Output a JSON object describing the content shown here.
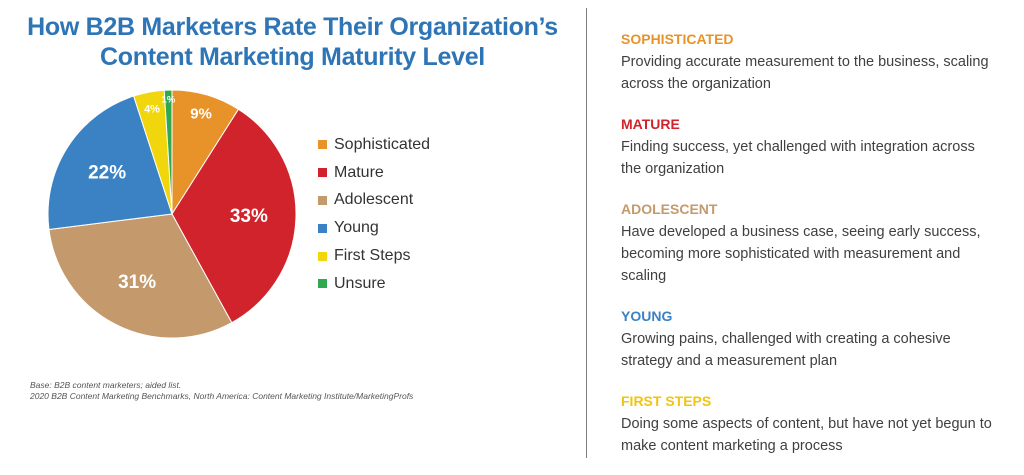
{
  "title": {
    "line1": "How B2B Marketers Rate Their Organization’s",
    "line2": "Content Marketing Maturity Level"
  },
  "colors": {
    "title": "#2e75b6",
    "sophisticated": "#e8932a",
    "mature": "#d0232b",
    "adolescent": "#c49a6c",
    "young": "#3b82c4",
    "first_steps": "#f2d60d",
    "unsure": "#2fa84f",
    "divider": "#7f7f7f"
  },
  "chart_data": {
    "type": "pie",
    "start_angle_deg": 0,
    "direction": "clockwise",
    "slices": [
      {
        "name": "Sophisticated",
        "value": 9,
        "label": "9%",
        "color": "#e8932a"
      },
      {
        "name": "Mature",
        "value": 33,
        "label": "33%",
        "color": "#d0232b"
      },
      {
        "name": "Adolescent",
        "value": 31,
        "label": "31%",
        "color": "#c49a6c"
      },
      {
        "name": "Young",
        "value": 22,
        "label": "22%",
        "color": "#3b82c4"
      },
      {
        "name": "First Steps",
        "value": 4,
        "label": "4%",
        "color": "#f2d60d"
      },
      {
        "name": "Unsure",
        "value": 1,
        "label": "1%",
        "color": "#2fa84f"
      }
    ],
    "legend": {
      "placement": "right",
      "items": [
        "Sophisticated",
        "Mature",
        "Adolescent",
        "Young",
        "First Steps",
        "Unsure"
      ]
    }
  },
  "source": {
    "line1": "Base: B2B content marketers; aided list.",
    "line2": "2020 B2B Content Marketing Benchmarks, North America: Content Marketing Institute/MarketingProfs"
  },
  "levels": [
    {
      "name": "SOPHISTICATED",
      "color": "#e8932a",
      "lines": [
        "Providing accurate measurement to the business, scaling",
        "across the organization"
      ]
    },
    {
      "name": "MATURE",
      "color": "#d0232b",
      "lines": [
        "Finding success, yet challenged with integration across",
        "the organization"
      ]
    },
    {
      "name": "ADOLESCENT",
      "color": "#c49a6c",
      "lines": [
        "Have developed a business case, seeing early success,",
        "becoming more sophisticated with measurement and",
        "scaling"
      ]
    },
    {
      "name": "YOUNG",
      "color": "#3b82c4",
      "lines": [
        "Growing pains, challenged with creating a cohesive",
        "strategy and a measurement plan"
      ]
    },
    {
      "name": "FIRST STEPS",
      "color": "#f2c40d",
      "lines": [
        "Doing some aspects of content, but have not yet begun to",
        "make content marketing a process"
      ]
    }
  ]
}
